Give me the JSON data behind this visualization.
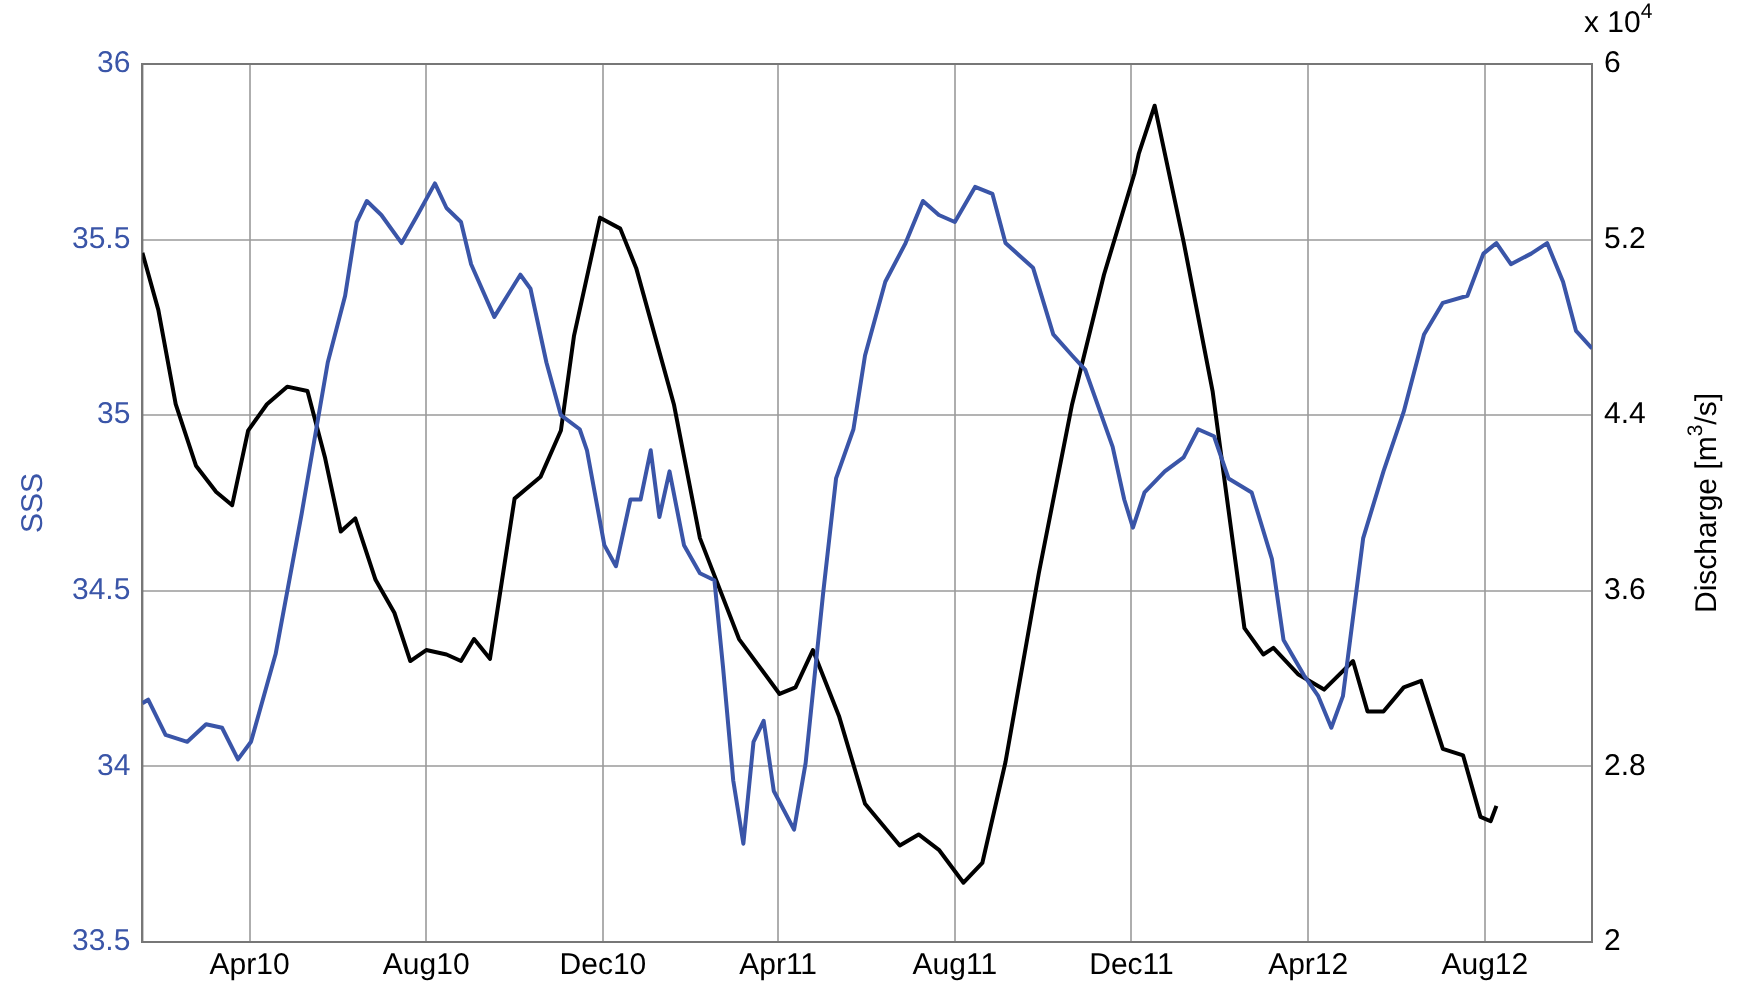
{
  "chart_data": {
    "type": "line",
    "ylabel": "SSS",
    "y2label": "Discharge [m$^{3}$/s]",
    "annotations": [
      "x 10$^{4}$"
    ],
    "xlim": [
      "2010-01-17",
      "2012-10-14"
    ],
    "xticks": [
      {
        "value": "2010-04-01",
        "label": "Apr10"
      },
      {
        "value": "2010-08-01",
        "label": "Aug10"
      },
      {
        "value": "2010-12-01",
        "label": "Dec10"
      },
      {
        "value": "2011-04-01",
        "label": "Apr11"
      },
      {
        "value": "2011-08-01",
        "label": "Aug11"
      },
      {
        "value": "2011-12-01",
        "label": "Dec11"
      },
      {
        "value": "2012-04-01",
        "label": "Apr12"
      },
      {
        "value": "2012-08-01",
        "label": "Aug12"
      }
    ],
    "ylim": [
      33.5,
      36
    ],
    "yticks": [
      33.5,
      34,
      34.5,
      35,
      35.5,
      36
    ],
    "y2lim": [
      2,
      6
    ],
    "y2ticks": [
      2,
      2.8,
      3.6,
      4.4,
      5.2,
      6
    ],
    "grid": true,
    "legend": false,
    "marker": "none",
    "line_style": "solid",
    "series": [
      {
        "color": "#3a55a8",
        "x": [
          "2010-01-17",
          "2010-01-21",
          "2010-02-02",
          "2010-02-17",
          "2010-03-02",
          "2010-03-13",
          "2010-03-24",
          "2010-04-02",
          "2010-04-19",
          "2010-05-07",
          "2010-05-25",
          "2010-06-06",
          "2010-06-14",
          "2010-06-21",
          "2010-07-01",
          "2010-07-15",
          "2010-07-26",
          "2010-08-07",
          "2010-08-15",
          "2010-08-25",
          "2010-09-01",
          "2010-09-17",
          "2010-09-26",
          "2010-10-05",
          "2010-10-12",
          "2010-10-23",
          "2010-11-02",
          "2010-11-15",
          "2010-11-20",
          "2010-12-02",
          "2010-12-10",
          "2010-12-20",
          "2010-12-27",
          "2011-01-03",
          "2011-01-09",
          "2011-01-16",
          "2011-01-26",
          "2011-02-06",
          "2011-02-16",
          "2011-02-22",
          "2011-03-01",
          "2011-03-08",
          "2011-03-15",
          "2011-03-22",
          "2011-03-29",
          "2011-04-12",
          "2011-04-20",
          "2011-05-02",
          "2011-05-11",
          "2011-05-23",
          "2011-05-31",
          "2011-06-14",
          "2011-06-28",
          "2011-07-10",
          "2011-07-21",
          "2011-08-01",
          "2011-08-15",
          "2011-08-27",
          "2011-09-05",
          "2011-09-24",
          "2011-10-08",
          "2011-10-21",
          "2011-10-30",
          "2011-11-18",
          "2011-11-26",
          "2011-12-02",
          "2011-12-10",
          "2011-12-24",
          "2012-01-06",
          "2012-01-16",
          "2012-01-27",
          "2012-02-06",
          "2012-02-22",
          "2012-03-07",
          "2012-03-15",
          "2012-03-29",
          "2012-04-08",
          "2012-04-17",
          "2012-04-25",
          "2012-05-09",
          "2012-05-23",
          "2012-06-06",
          "2012-06-20",
          "2012-07-03",
          "2012-07-20",
          "2012-07-31",
          "2012-08-09",
          "2012-08-19",
          "2012-09-02",
          "2012-09-13",
          "2012-09-24",
          "2012-10-03",
          "2012-10-14"
        ],
        "values": [
          34.18,
          34.19,
          34.09,
          34.07,
          34.12,
          34.11,
          34.02,
          34.07,
          34.32,
          34.72,
          35.15,
          35.34,
          35.55,
          35.61,
          35.57,
          35.49,
          35.57,
          35.66,
          35.59,
          35.55,
          35.43,
          35.28,
          35.34,
          35.4,
          35.36,
          35.15,
          35.0,
          34.96,
          34.9,
          34.63,
          34.57,
          34.76,
          34.76,
          34.9,
          34.71,
          34.84,
          34.63,
          34.55,
          34.53,
          34.28,
          33.96,
          33.78,
          34.07,
          34.13,
          33.93,
          33.82,
          34.01,
          34.49,
          34.82,
          34.96,
          35.17,
          35.38,
          35.49,
          35.61,
          35.57,
          35.55,
          35.65,
          35.63,
          35.49,
          35.42,
          35.23,
          35.17,
          35.13,
          34.91,
          34.76,
          34.68,
          34.78,
          34.84,
          34.88,
          34.96,
          34.94,
          34.82,
          34.78,
          34.59,
          34.36,
          34.26,
          34.2,
          34.11,
          34.2,
          34.65,
          34.84,
          35.01,
          35.23,
          35.32,
          35.34,
          35.46,
          35.49,
          35.43,
          35.46,
          35.49,
          35.38,
          35.24,
          35.19
        ]
      },
      {
        "color": "#000000",
        "axis": "y2",
        "x": [
          "2010-01-17",
          "2010-01-28",
          "2010-02-09",
          "2010-02-23",
          "2010-03-09",
          "2010-03-20",
          "2010-03-31",
          "2010-04-13",
          "2010-04-27",
          "2010-05-11",
          "2010-05-23",
          "2010-06-03",
          "2010-06-13",
          "2010-06-27",
          "2010-07-10",
          "2010-07-21",
          "2010-08-01",
          "2010-08-15",
          "2010-08-25",
          "2010-09-03",
          "2010-09-14",
          "2010-10-01",
          "2010-10-19",
          "2010-11-02",
          "2010-11-11",
          "2010-11-29",
          "2010-12-13",
          "2010-12-24",
          "2011-01-19",
          "2011-02-06",
          "2011-03-05",
          "2011-04-02",
          "2011-04-13",
          "2011-04-25",
          "2011-05-13",
          "2011-05-31",
          "2011-06-24",
          "2011-07-07",
          "2011-07-21",
          "2011-08-07",
          "2011-08-20",
          "2011-09-05",
          "2011-09-28",
          "2011-10-21",
          "2011-11-12",
          "2011-12-03",
          "2011-12-06",
          "2011-12-17",
          "2012-01-06",
          "2012-01-26",
          "2012-02-08",
          "2012-02-17",
          "2012-03-01",
          "2012-03-08",
          "2012-03-25",
          "2012-04-12",
          "2012-05-02",
          "2012-05-12",
          "2012-05-23",
          "2012-06-06",
          "2012-06-18",
          "2012-07-03",
          "2012-07-17",
          "2012-07-29",
          "2012-08-05",
          "2012-08-09"
        ],
        "values": [
          5.14,
          4.88,
          4.45,
          4.17,
          4.05,
          3.99,
          4.33,
          4.45,
          4.53,
          4.51,
          4.21,
          3.87,
          3.93,
          3.65,
          3.5,
          3.28,
          3.33,
          3.31,
          3.28,
          3.38,
          3.29,
          4.02,
          4.12,
          4.33,
          4.76,
          5.3,
          5.25,
          5.07,
          4.45,
          3.84,
          3.38,
          3.13,
          3.16,
          3.33,
          3.03,
          2.63,
          2.44,
          2.49,
          2.42,
          2.27,
          2.36,
          2.82,
          3.68,
          4.45,
          5.04,
          5.5,
          5.59,
          5.81,
          5.19,
          4.51,
          3.87,
          3.43,
          3.31,
          3.34,
          3.22,
          3.15,
          3.28,
          3.05,
          3.05,
          3.16,
          3.19,
          2.88,
          2.85,
          2.57,
          2.55,
          2.62
        ]
      }
    ]
  }
}
